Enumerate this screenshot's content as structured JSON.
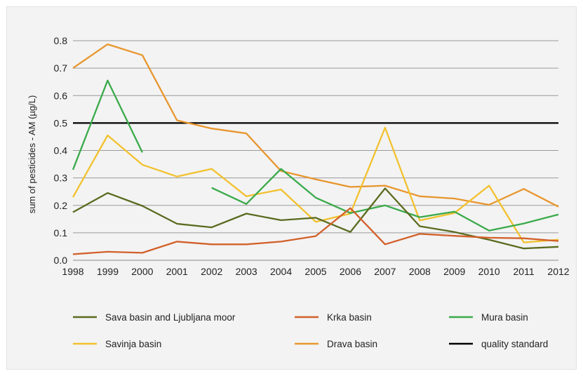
{
  "chart_data": {
    "type": "line",
    "ylabel": "sum of pesticides - AM (µg/L)",
    "xlabel": "",
    "title": "",
    "ylim": [
      0,
      0.8
    ],
    "yticks": [
      "0.0",
      "0.1",
      "0.2",
      "0.3",
      "0.4",
      "0.5",
      "0.6",
      "0.7",
      "0.8"
    ],
    "grid": "horizontal",
    "legend_position": "bottom",
    "x": [
      1998,
      1999,
      2000,
      2001,
      2002,
      2003,
      2004,
      2005,
      2006,
      2007,
      2008,
      2009,
      2010,
      2011,
      2012
    ],
    "series": [
      {
        "name": "Sava basin and Ljubljana moor",
        "color": "#5a6b1f",
        "values": [
          0.175,
          0.245,
          0.198,
          0.133,
          0.12,
          0.17,
          0.146,
          0.155,
          0.103,
          0.262,
          0.124,
          0.103,
          0.075,
          0.043,
          0.049
        ]
      },
      {
        "name": "Krka basin",
        "color": "#d2602a",
        "values": [
          0.022,
          0.031,
          0.027,
          0.068,
          0.058,
          0.058,
          0.068,
          0.088,
          0.19,
          0.058,
          0.096,
          0.089,
          0.082,
          0.08,
          0.07
        ]
      },
      {
        "name": "Mura basin",
        "color": "#3aaa4a",
        "values": [
          0.33,
          0.655,
          0.393,
          null,
          0.264,
          0.205,
          0.333,
          0.228,
          0.172,
          0.2,
          0.157,
          0.177,
          0.108,
          0.134,
          0.167
        ]
      },
      {
        "name": "Savinja basin",
        "color": "#f2c12e",
        "values": [
          0.23,
          0.455,
          0.348,
          0.305,
          0.333,
          0.233,
          0.258,
          0.14,
          0.17,
          0.483,
          0.145,
          0.172,
          0.272,
          0.065,
          0.075
        ]
      },
      {
        "name": "Drava basin",
        "color": "#e8962e",
        "values": [
          0.7,
          0.787,
          0.747,
          0.51,
          0.48,
          0.462,
          0.325,
          0.295,
          0.267,
          0.272,
          0.233,
          0.225,
          0.202,
          0.26,
          0.195
        ]
      },
      {
        "name": "quality standard",
        "color": "#000000",
        "values": [
          0.5,
          0.5,
          0.5,
          0.5,
          0.5,
          0.5,
          0.5,
          0.5,
          0.5,
          0.5,
          0.5,
          0.5,
          0.5,
          0.5,
          0.5
        ]
      }
    ]
  }
}
